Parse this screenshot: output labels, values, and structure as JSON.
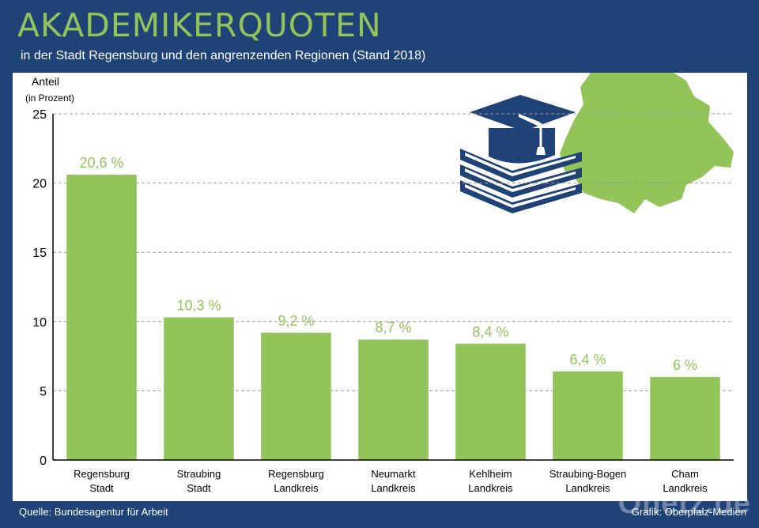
{
  "header": {
    "title": "AKADEMIKERQUOTEN",
    "subtitle": "in der Stadt Regensburg und den angrenzenden Regionen (Stand 2018)"
  },
  "footer": {
    "source": "Quelle: Bundesagentur für Arbeit",
    "credit": "Grafik: Oberpfalz-Medien",
    "brand": "Onetz.de"
  },
  "colors": {
    "background": "#1f4277",
    "bar": "#93c45a",
    "label": "#93c45a",
    "icon": "#1f4277",
    "map": "#93c45a"
  },
  "icons": [
    "graduation-cap-icon",
    "books-icon",
    "region-map-icon"
  ],
  "chart_data": {
    "type": "bar",
    "title": "AKADEMIKERQUOTEN",
    "ylabel": "Anteil",
    "ylabel_unit": "(in Prozent)",
    "xlabel": "",
    "ylim": [
      0,
      25
    ],
    "yticks": [
      0,
      5,
      10,
      15,
      20,
      25
    ],
    "grid": true,
    "categories": [
      [
        "Regensburg",
        "Stadt"
      ],
      [
        "Straubing",
        "Stadt"
      ],
      [
        "Regensburg",
        "Landkreis"
      ],
      [
        "Neumarkt",
        "Landkreis"
      ],
      [
        "Kehlheim",
        "Landkreis"
      ],
      [
        "Straubing-Bogen",
        "Landkreis"
      ],
      [
        "Cham",
        "Landkreis"
      ]
    ],
    "values": [
      20.6,
      10.3,
      9.2,
      8.7,
      8.4,
      6.4,
      6
    ],
    "data_labels": [
      "20,6 %",
      "10,3 %",
      "9,2 %",
      "8,7 %",
      "8,4 %",
      "6,4 %",
      "6 %"
    ]
  }
}
